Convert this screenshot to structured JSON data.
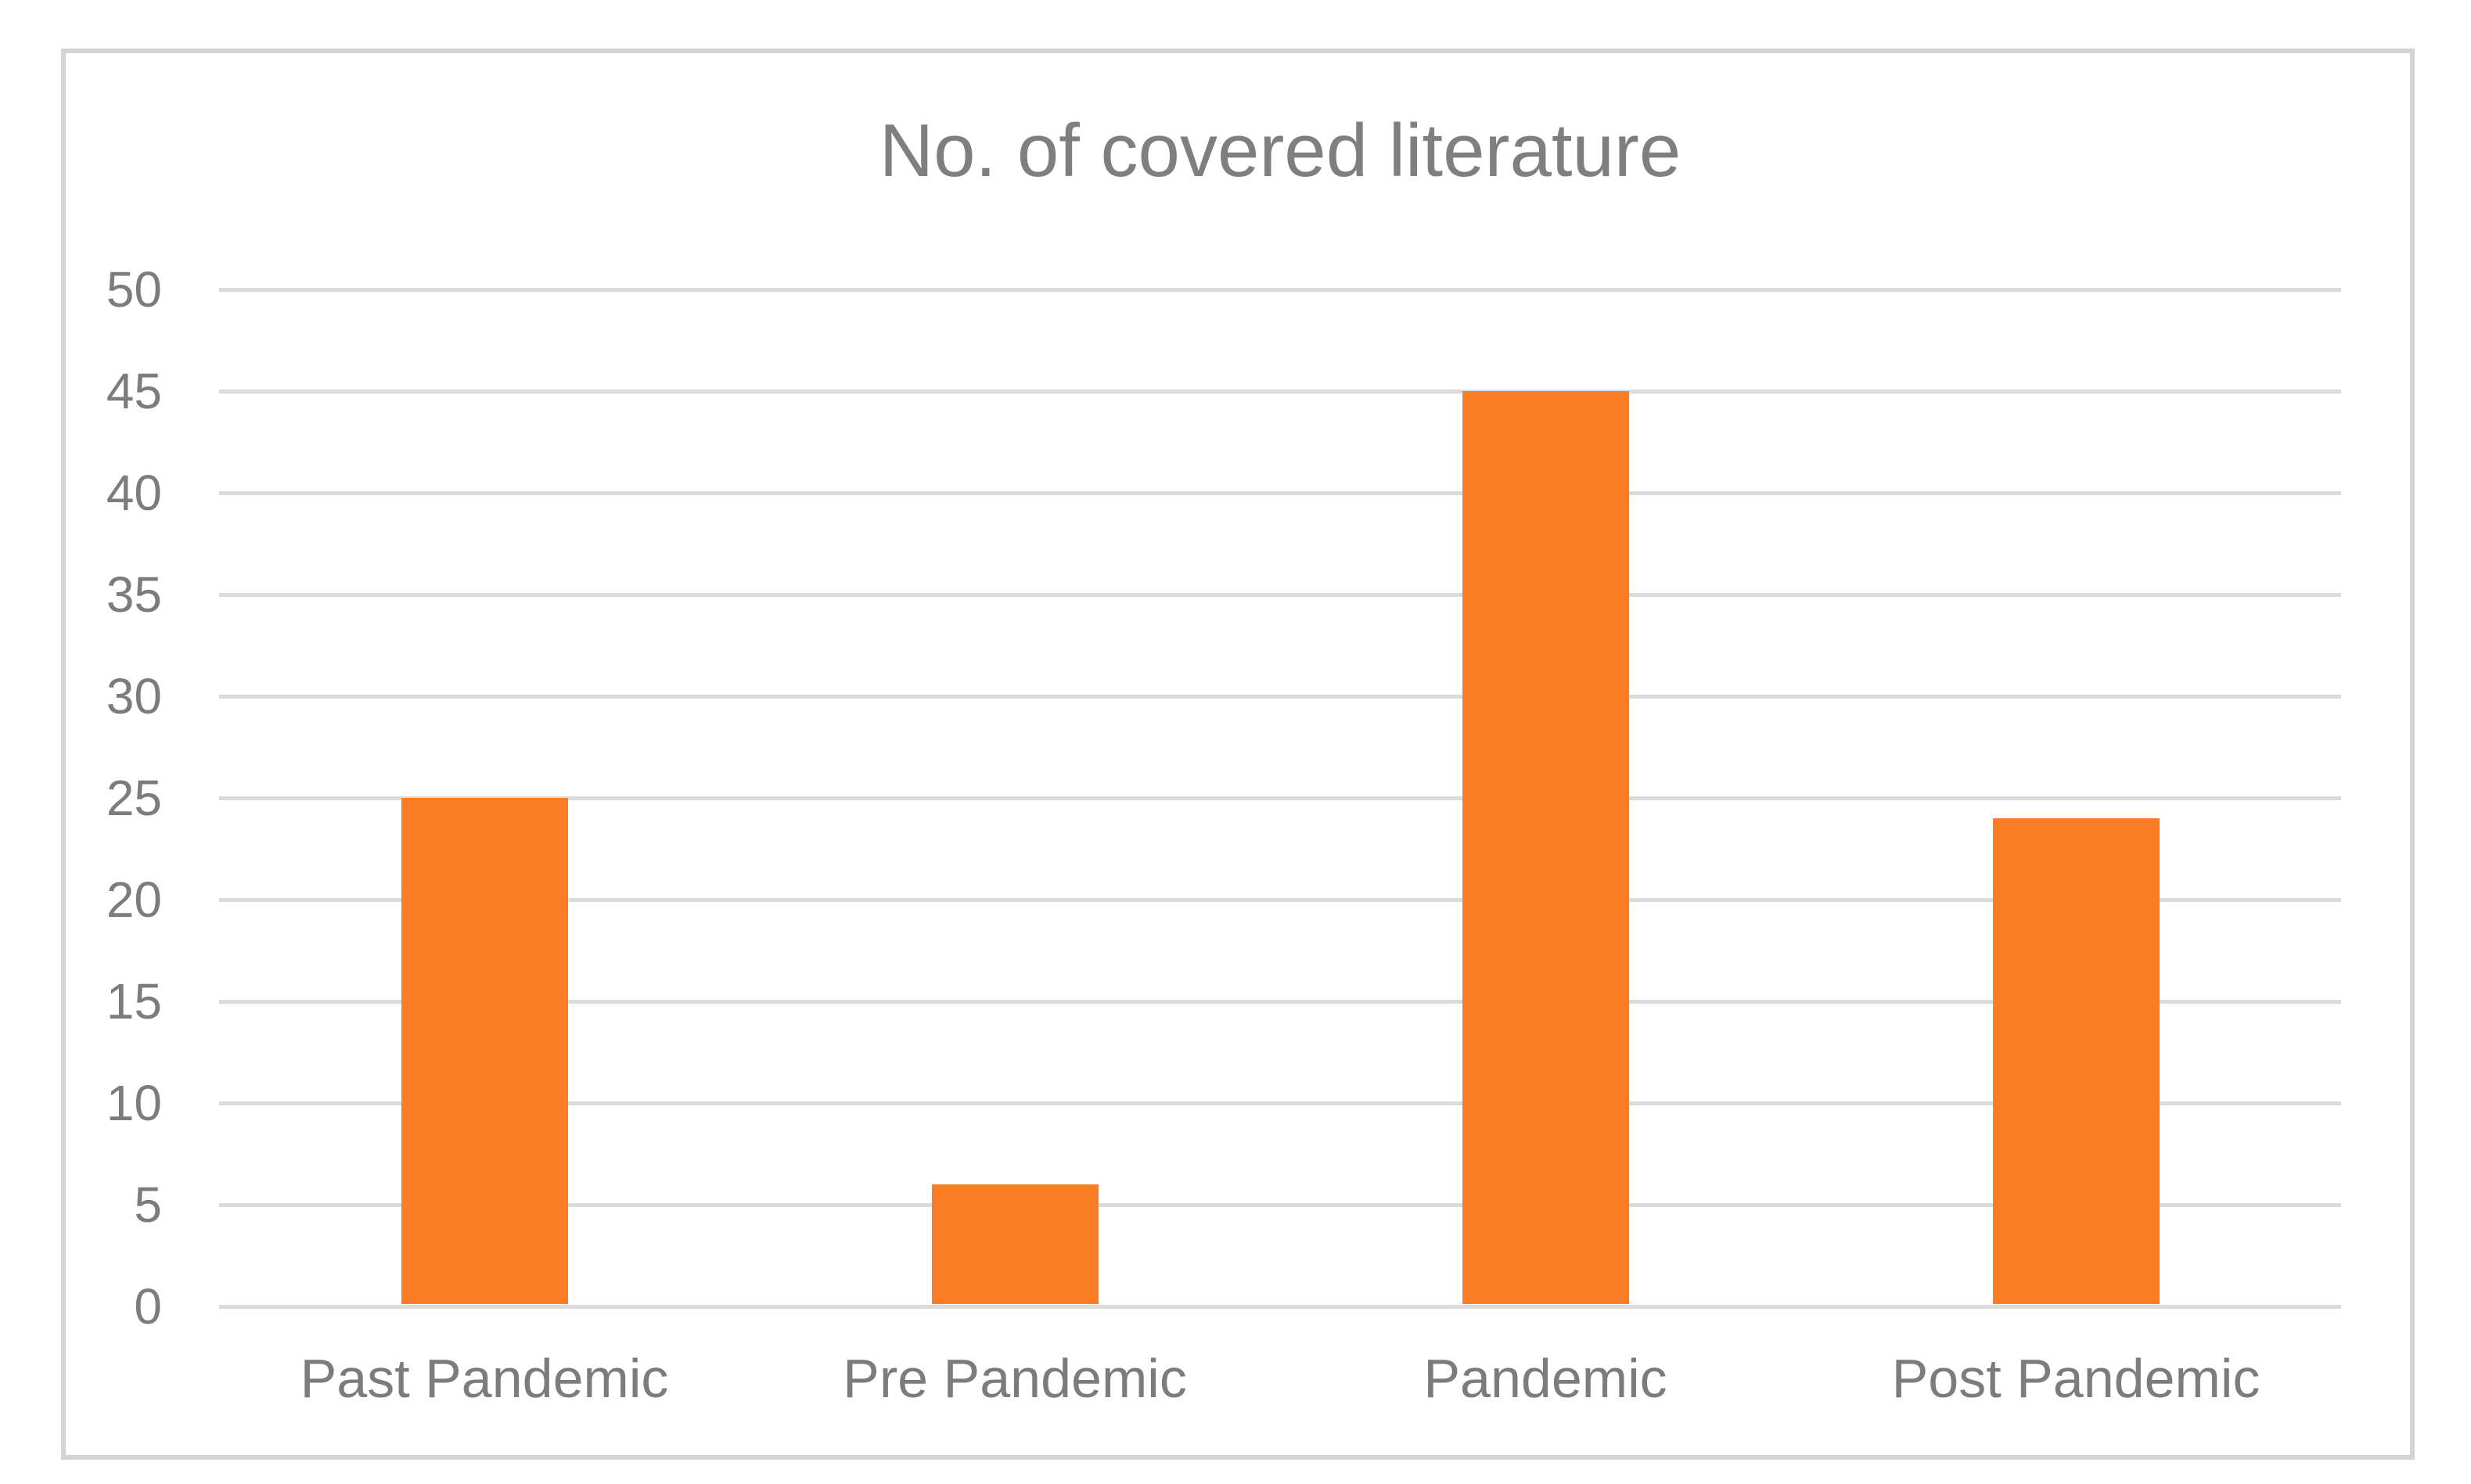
{
  "chart_data": {
    "type": "bar",
    "title": "No. of covered literature",
    "categories": [
      "Past Pandemic",
      "Pre Pandemic",
      "Pandemic",
      "Post Pandemic"
    ],
    "values": [
      25,
      6,
      45,
      24
    ],
    "xlabel": "",
    "ylabel": "",
    "ylim": [
      0,
      50
    ],
    "ytick_step": 5,
    "yticks": [
      0,
      5,
      10,
      15,
      20,
      25,
      30,
      35,
      40,
      45,
      50
    ],
    "grid": true,
    "legend": false,
    "colors": {
      "bar": "#fb7e26",
      "gridline": "#dbdbdb",
      "frame_border": "#d4d4d4",
      "title_text": "#7f7f7f",
      "axis_text": "#7c7c7c",
      "background": "#ffffff"
    }
  }
}
